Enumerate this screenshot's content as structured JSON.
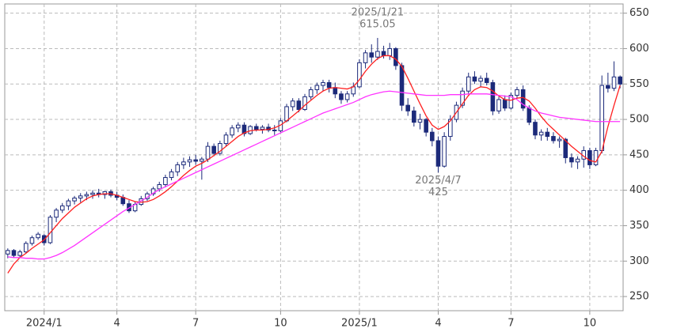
{
  "chart_data": {
    "type": "candlestick",
    "candle_color": "#1c2a7a",
    "grid": true,
    "ylim": [
      230,
      663
    ],
    "yticks": [
      250,
      300,
      350,
      400,
      450,
      500,
      550,
      600,
      650
    ],
    "categories": [
      null,
      null,
      null,
      null,
      null,
      null,
      "2024/1",
      null,
      null,
      null,
      null,
      null,
      null,
      null,
      null,
      null,
      null,
      null,
      "4",
      null,
      null,
      null,
      null,
      null,
      null,
      null,
      null,
      null,
      null,
      null,
      null,
      "7",
      null,
      null,
      null,
      null,
      null,
      null,
      null,
      null,
      null,
      null,
      null,
      null,
      null,
      "10",
      null,
      null,
      null,
      null,
      null,
      null,
      null,
      null,
      null,
      null,
      null,
      null,
      "2025/1",
      null,
      null,
      null,
      null,
      null,
      null,
      null,
      null,
      null,
      null,
      null,
      null,
      "4",
      null,
      null,
      null,
      null,
      null,
      null,
      null,
      null,
      null,
      null,
      null,
      "7",
      null,
      null,
      null,
      null,
      null,
      null,
      null,
      null,
      null,
      null,
      null,
      null,
      "10",
      null,
      null,
      null,
      null,
      null
    ],
    "candles": [
      [
        310,
        318,
        304,
        315
      ],
      [
        315,
        317,
        305,
        308
      ],
      [
        308,
        316,
        305,
        313
      ],
      [
        313,
        328,
        311,
        325
      ],
      [
        325,
        336,
        322,
        333
      ],
      [
        333,
        341,
        330,
        338
      ],
      [
        336,
        338,
        322,
        326
      ],
      [
        326,
        365,
        324,
        362
      ],
      [
        362,
        375,
        355,
        372
      ],
      [
        372,
        382,
        368,
        378
      ],
      [
        378,
        388,
        372,
        385
      ],
      [
        385,
        392,
        380,
        389
      ],
      [
        389,
        396,
        383,
        392
      ],
      [
        392,
        398,
        386,
        394
      ],
      [
        394,
        400,
        388,
        396
      ],
      [
        396,
        402,
        390,
        394
      ],
      [
        394,
        399,
        388,
        398
      ],
      [
        398,
        401,
        390,
        393
      ],
      [
        393,
        398,
        386,
        390
      ],
      [
        390,
        394,
        378,
        381
      ],
      [
        381,
        386,
        368,
        371
      ],
      [
        371,
        384,
        369,
        380
      ],
      [
        380,
        392,
        378,
        388
      ],
      [
        388,
        398,
        385,
        395
      ],
      [
        395,
        405,
        392,
        402
      ],
      [
        402,
        412,
        398,
        408
      ],
      [
        408,
        422,
        404,
        418
      ],
      [
        418,
        430,
        414,
        426
      ],
      [
        426,
        440,
        420,
        436
      ],
      [
        436,
        446,
        430,
        440
      ],
      [
        440,
        448,
        433,
        443
      ],
      [
        443,
        450,
        436,
        441
      ],
      [
        441,
        447,
        415,
        444
      ],
      [
        444,
        468,
        440,
        462
      ],
      [
        462,
        466,
        448,
        452
      ],
      [
        452,
        470,
        449,
        466
      ],
      [
        466,
        482,
        462,
        478
      ],
      [
        478,
        492,
        474,
        488
      ],
      [
        488,
        496,
        482,
        492
      ],
      [
        492,
        496,
        476,
        480
      ],
      [
        480,
        492,
        478,
        490
      ],
      [
        490,
        494,
        483,
        486
      ],
      [
        486,
        492,
        480,
        489
      ],
      [
        489,
        494,
        482,
        485
      ],
      [
        485,
        492,
        478,
        484
      ],
      [
        484,
        502,
        482,
        498
      ],
      [
        498,
        522,
        496,
        518
      ],
      [
        518,
        530,
        512,
        526
      ],
      [
        526,
        530,
        510,
        514
      ],
      [
        514,
        536,
        512,
        532
      ],
      [
        532,
        546,
        528,
        542
      ],
      [
        542,
        552,
        536,
        548
      ],
      [
        548,
        556,
        540,
        552
      ],
      [
        552,
        556,
        538,
        545
      ],
      [
        545,
        552,
        530,
        536
      ],
      [
        536,
        540,
        522,
        528
      ],
      [
        528,
        540,
        524,
        536
      ],
      [
        536,
        552,
        532,
        546
      ],
      [
        546,
        585,
        544,
        580
      ],
      [
        580,
        598,
        572,
        594
      ],
      [
        594,
        606,
        580,
        588
      ],
      [
        588,
        615.05,
        584,
        596
      ],
      [
        596,
        604,
        586,
        590
      ],
      [
        590,
        608,
        584,
        600
      ],
      [
        600,
        602,
        570,
        576
      ],
      [
        576,
        580,
        512,
        520
      ],
      [
        520,
        530,
        505,
        512
      ],
      [
        512,
        518,
        490,
        496
      ],
      [
        496,
        508,
        486,
        500
      ],
      [
        500,
        502,
        476,
        482
      ],
      [
        482,
        488,
        462,
        470
      ],
      [
        470,
        476,
        425,
        434
      ],
      [
        434,
        482,
        432,
        476
      ],
      [
        476,
        506,
        470,
        500
      ],
      [
        500,
        525,
        496,
        520
      ],
      [
        520,
        545,
        516,
        540
      ],
      [
        540,
        566,
        536,
        560
      ],
      [
        560,
        568,
        550,
        554
      ],
      [
        554,
        562,
        546,
        558
      ],
      [
        558,
        566,
        548,
        552
      ],
      [
        552,
        556,
        506,
        512
      ],
      [
        512,
        532,
        508,
        528
      ],
      [
        528,
        534,
        512,
        516
      ],
      [
        516,
        538,
        514,
        534
      ],
      [
        534,
        546,
        530,
        542
      ],
      [
        542,
        548,
        512,
        516
      ],
      [
        516,
        520,
        492,
        496
      ],
      [
        496,
        500,
        472,
        478
      ],
      [
        478,
        486,
        470,
        482
      ],
      [
        482,
        488,
        470,
        476
      ],
      [
        476,
        482,
        466,
        470
      ],
      [
        470,
        476,
        460,
        472
      ],
      [
        472,
        474,
        438,
        446
      ],
      [
        446,
        452,
        432,
        440
      ],
      [
        440,
        448,
        430,
        444
      ],
      [
        444,
        462,
        432,
        456
      ],
      [
        456,
        460,
        430,
        436
      ],
      [
        436,
        460,
        434,
        456
      ],
      [
        456,
        562,
        452,
        548
      ],
      [
        548,
        566,
        538,
        544
      ],
      [
        544,
        582,
        540,
        560
      ],
      [
        560,
        562,
        544,
        550
      ]
    ],
    "series": [
      {
        "color": "#ff2020",
        "values": [
          283,
          296,
          305,
          311,
          318,
          324,
          330,
          340,
          350,
          360,
          368,
          376,
          382,
          388,
          392,
          394,
          395,
          395,
          393,
          390,
          387,
          384,
          383,
          384,
          387,
          392,
          398,
          405,
          413,
          421,
          428,
          434,
          438,
          443,
          449,
          455,
          462,
          469,
          476,
          481,
          484,
          485,
          485,
          486,
          488,
          492,
          498,
          505,
          512,
          520,
          527,
          534,
          540,
          544,
          545,
          544,
          543,
          546,
          556,
          568,
          578,
          586,
          590,
          590,
          585,
          575,
          558,
          540,
          522,
          505,
          492,
          486,
          490,
          498,
          510,
          522,
          534,
          542,
          546,
          545,
          540,
          533,
          528,
          527,
          530,
          531,
          526,
          516,
          504,
          494,
          486,
          478,
          470,
          462,
          455,
          448,
          442,
          440,
          455,
          490,
          520,
          548
        ]
      },
      {
        "color": "#ff33ff",
        "values": [
          306,
          305,
          305,
          304,
          304,
          303,
          303,
          305,
          308,
          312,
          317,
          322,
          328,
          334,
          340,
          346,
          352,
          358,
          364,
          370,
          375,
          380,
          385,
          390,
          396,
          401,
          405,
          409,
          413,
          417,
          421,
          425,
          429,
          433,
          437,
          441,
          445,
          449,
          453,
          457,
          461,
          465,
          469,
          473,
          477,
          481,
          485,
          489,
          493,
          497,
          501,
          505,
          509,
          512,
          515,
          518,
          521,
          524,
          528,
          532,
          535,
          537,
          539,
          540,
          539,
          538,
          537,
          536,
          535,
          534,
          534,
          534,
          534,
          535,
          535,
          535,
          536,
          536,
          536,
          536,
          535,
          534,
          533,
          532,
          528,
          521,
          516,
          512,
          509,
          507,
          505,
          503,
          502,
          501,
          500,
          499,
          498,
          497,
          497,
          497,
          497,
          497
        ]
      }
    ],
    "annotations": [
      {
        "date": "2025/1/21",
        "value": 615.05,
        "kind": "high"
      },
      {
        "date": "2025/4/7",
        "value": 425,
        "kind": "low"
      }
    ]
  }
}
